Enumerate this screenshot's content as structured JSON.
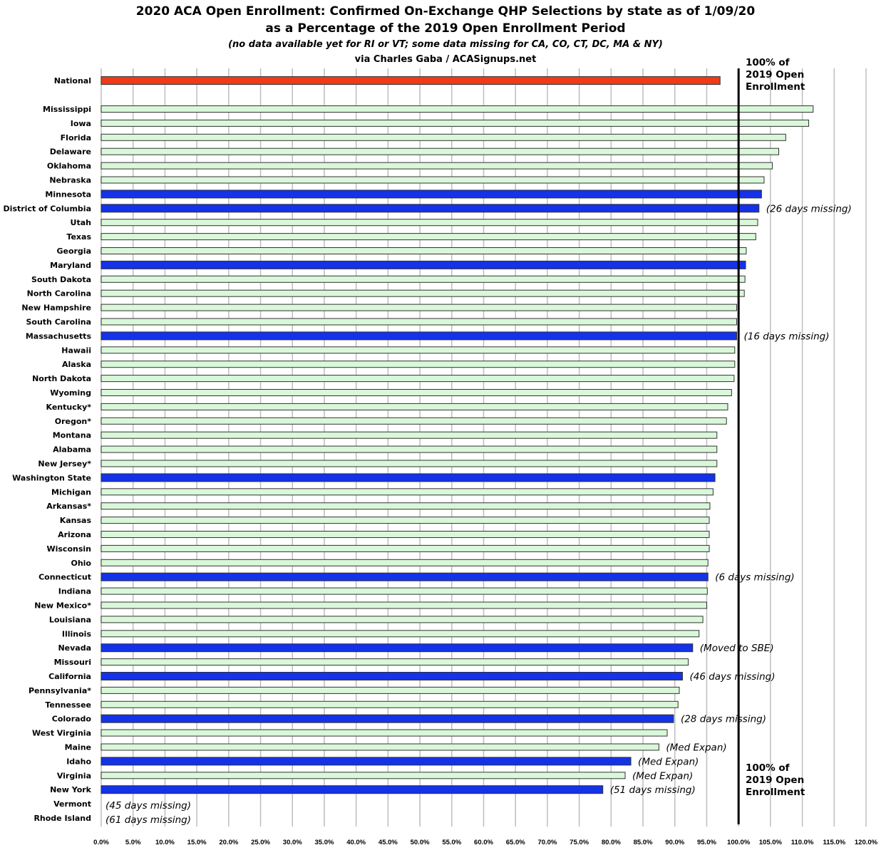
{
  "chart_data": {
    "type": "bar",
    "orientation": "horizontal",
    "title": "2020 ACA Open Enrollment: Confirmed On-Exchange QHP Selections by state as of 1/09/20",
    "title_line2": "as a Percentage of the 2019 Open Enrollment Period",
    "subtitle": "(no data available yet for RI or VT; some data missing for CA, CO, CT, DC, MA & NY)",
    "source": "via Charles Gaba / ACASignups.net",
    "reference_line": {
      "value": 100,
      "label": "100% of 2019 Open Enrollment"
    },
    "xlim": [
      0,
      120
    ],
    "xticks": [
      "0.0%",
      "5.0%",
      "10.0%",
      "15.0%",
      "20.0%",
      "25.0%",
      "30.0%",
      "35.0%",
      "40.0%",
      "45.0%",
      "50.0%",
      "55.0%",
      "60.0%",
      "65.0%",
      "70.0%",
      "75.0%",
      "80.0%",
      "85.0%",
      "90.0%",
      "95.0%",
      "100.0%",
      "105.0%",
      "110.0%",
      "115.0%",
      "120.0%"
    ],
    "grid": "vertical",
    "colors": {
      "national": "#f03a17",
      "state_based_exchange": "#1432e8",
      "federal": "#d9f7d9",
      "border": "#333333"
    },
    "rows": [
      {
        "label": "National",
        "value": 97.1,
        "type": "national",
        "note": ""
      },
      {
        "label": "Mississippi",
        "value": 111.7,
        "type": "federal",
        "note": ""
      },
      {
        "label": "Iowa",
        "value": 111.0,
        "type": "federal",
        "note": ""
      },
      {
        "label": "Florida",
        "value": 107.4,
        "type": "federal",
        "note": ""
      },
      {
        "label": "Delaware",
        "value": 106.3,
        "type": "federal",
        "note": ""
      },
      {
        "label": "Oklahoma",
        "value": 105.3,
        "type": "federal",
        "note": ""
      },
      {
        "label": "Nebraska",
        "value": 104.0,
        "type": "federal",
        "note": ""
      },
      {
        "label": "Minnesota",
        "value": 103.6,
        "type": "state_based_exchange",
        "note": ""
      },
      {
        "label": "District of Columbia",
        "value": 103.2,
        "type": "state_based_exchange",
        "note": "(26 days missing)"
      },
      {
        "label": "Utah",
        "value": 103.0,
        "type": "federal",
        "note": ""
      },
      {
        "label": "Texas",
        "value": 102.7,
        "type": "federal",
        "note": ""
      },
      {
        "label": "Georgia",
        "value": 101.2,
        "type": "federal",
        "note": ""
      },
      {
        "label": "Maryland",
        "value": 101.1,
        "type": "state_based_exchange",
        "note": ""
      },
      {
        "label": "South Dakota",
        "value": 101.0,
        "type": "federal",
        "note": ""
      },
      {
        "label": "North Carolina",
        "value": 100.9,
        "type": "federal",
        "note": ""
      },
      {
        "label": "New Hampshire",
        "value": 99.7,
        "type": "federal",
        "note": ""
      },
      {
        "label": "South Carolina",
        "value": 99.7,
        "type": "federal",
        "note": ""
      },
      {
        "label": "Massachusetts",
        "value": 99.7,
        "type": "state_based_exchange",
        "note": "(16 days missing)"
      },
      {
        "label": "Hawaii",
        "value": 99.4,
        "type": "federal",
        "note": ""
      },
      {
        "label": "Alaska",
        "value": 99.4,
        "type": "federal",
        "note": ""
      },
      {
        "label": "North Dakota",
        "value": 99.3,
        "type": "federal",
        "note": ""
      },
      {
        "label": "Wyoming",
        "value": 98.9,
        "type": "federal",
        "note": ""
      },
      {
        "label": "Kentucky*",
        "value": 98.3,
        "type": "federal",
        "note": ""
      },
      {
        "label": "Oregon*",
        "value": 98.1,
        "type": "federal",
        "note": ""
      },
      {
        "label": "Montana",
        "value": 96.6,
        "type": "federal",
        "note": ""
      },
      {
        "label": "Alabama",
        "value": 96.6,
        "type": "federal",
        "note": ""
      },
      {
        "label": "New Jersey*",
        "value": 96.6,
        "type": "federal",
        "note": ""
      },
      {
        "label": "Washington State",
        "value": 96.3,
        "type": "state_based_exchange",
        "note": ""
      },
      {
        "label": "Michigan",
        "value": 96.0,
        "type": "federal",
        "note": ""
      },
      {
        "label": "Arkansas*",
        "value": 95.5,
        "type": "federal",
        "note": ""
      },
      {
        "label": "Kansas",
        "value": 95.4,
        "type": "federal",
        "note": ""
      },
      {
        "label": "Arizona",
        "value": 95.4,
        "type": "federal",
        "note": ""
      },
      {
        "label": "Wisconsin",
        "value": 95.4,
        "type": "federal",
        "note": ""
      },
      {
        "label": "Ohio",
        "value": 95.2,
        "type": "federal",
        "note": ""
      },
      {
        "label": "Connecticut",
        "value": 95.2,
        "type": "state_based_exchange",
        "note": "(6 days missing)"
      },
      {
        "label": "Indiana",
        "value": 95.1,
        "type": "federal",
        "note": ""
      },
      {
        "label": "New Mexico*",
        "value": 95.0,
        "type": "federal",
        "note": ""
      },
      {
        "label": "Louisiana",
        "value": 94.4,
        "type": "federal",
        "note": ""
      },
      {
        "label": "Illinois",
        "value": 93.8,
        "type": "federal",
        "note": ""
      },
      {
        "label": "Nevada",
        "value": 92.8,
        "type": "state_based_exchange",
        "note": "(Moved to SBE)"
      },
      {
        "label": "Missouri",
        "value": 92.1,
        "type": "federal",
        "note": ""
      },
      {
        "label": "California",
        "value": 91.2,
        "type": "state_based_exchange",
        "note": "(46 days missing)"
      },
      {
        "label": "Pennsylvania*",
        "value": 90.7,
        "type": "federal",
        "note": ""
      },
      {
        "label": "Tennessee",
        "value": 90.5,
        "type": "federal",
        "note": ""
      },
      {
        "label": "Colorado",
        "value": 89.8,
        "type": "state_based_exchange",
        "note": "(28 days missing)"
      },
      {
        "label": "West Virginia",
        "value": 88.8,
        "type": "federal",
        "note": ""
      },
      {
        "label": "Maine",
        "value": 87.5,
        "type": "federal",
        "note": "(Med Expan)"
      },
      {
        "label": "Idaho",
        "value": 83.1,
        "type": "state_based_exchange",
        "note": "(Med Expan)"
      },
      {
        "label": "Virginia",
        "value": 82.2,
        "type": "federal",
        "note": "(Med Expan)"
      },
      {
        "label": "New York",
        "value": 78.7,
        "type": "state_based_exchange",
        "note": "(51 days missing)"
      },
      {
        "label": "Vermont",
        "value": null,
        "type": "state_based_exchange",
        "note": "(45 days missing)"
      },
      {
        "label": "Rhode Island",
        "value": null,
        "type": "state_based_exchange",
        "note": "(61 days missing)"
      }
    ]
  },
  "reference_labels": {
    "top_line1": "100% of",
    "top_line2": "2019 Open",
    "top_line3": "Enrollment",
    "bottom_line1": "100% of",
    "bottom_line2": "2019 Open",
    "bottom_line3": "Enrollment"
  }
}
